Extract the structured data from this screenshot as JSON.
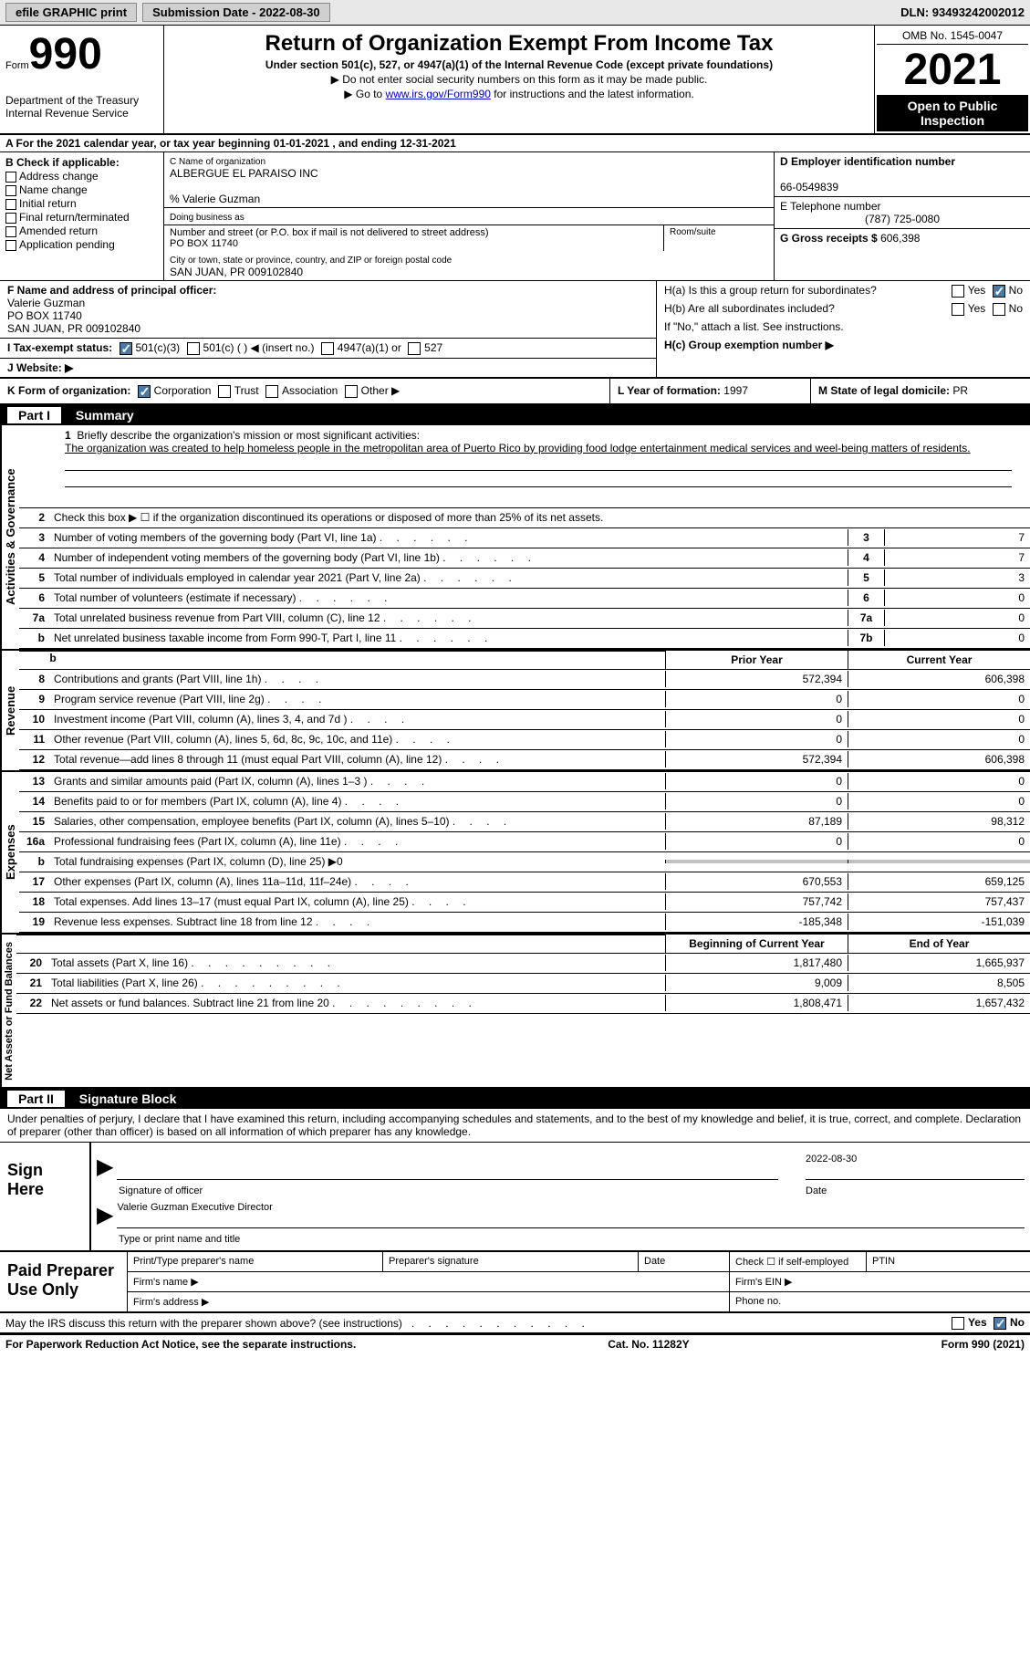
{
  "topbar": {
    "efile": "efile GRAPHIC print",
    "submission_label": "Submission Date - 2022-08-30",
    "dln_label": "DLN: 93493242002012"
  },
  "header": {
    "form_word": "Form",
    "form_num": "990",
    "dept": "Department of the Treasury",
    "irs": "Internal Revenue Service",
    "title": "Return of Organization Exempt From Income Tax",
    "sub": "Under section 501(c), 527, or 4947(a)(1) of the Internal Revenue Code (except private foundations)",
    "note1": "▶ Do not enter social security numbers on this form as it may be made public.",
    "note2_prefix": "▶ Go to ",
    "note2_link": "www.irs.gov/Form990",
    "note2_suffix": " for instructions and the latest information.",
    "omb": "OMB No. 1545-0047",
    "year": "2021",
    "open": "Open to Public Inspection"
  },
  "row_a": "A For the 2021 calendar year, or tax year beginning 01-01-2021   , and ending 12-31-2021",
  "col_b": {
    "label": "B Check if applicable:",
    "addr": "Address change",
    "name": "Name change",
    "initial": "Initial return",
    "final": "Final return/terminated",
    "amended": "Amended return",
    "app": "Application pending"
  },
  "col_c": {
    "name_lbl": "C Name of organization",
    "name": "ALBERGUE EL PARAISO INC",
    "care_of": "% Valerie Guzman",
    "dba_lbl": "Doing business as",
    "street_lbl": "Number and street (or P.O. box if mail is not delivered to street address)",
    "street": "PO BOX 11740",
    "room_lbl": "Room/suite",
    "city_lbl": "City or town, state or province, country, and ZIP or foreign postal code",
    "city": "SAN JUAN, PR  009102840"
  },
  "col_d": {
    "ein_lbl": "D Employer identification number",
    "ein": "66-0549839",
    "phone_lbl": "E Telephone number",
    "phone": "(787) 725-0080",
    "gross_lbl": "G Gross receipts $",
    "gross": "606,398"
  },
  "f_block": {
    "lbl": "F Name and address of principal officer:",
    "name": "Valerie Guzman",
    "street": "PO BOX 11740",
    "city": "SAN JUAN, PR  009102840"
  },
  "h_block": {
    "ha": "H(a)  Is this a group return for subordinates?",
    "yes": "Yes",
    "no": "No",
    "hb": "H(b)  Are all subordinates included?",
    "hb_note": "If \"No,\" attach a list. See instructions.",
    "hc": "H(c)  Group exemption number ▶"
  },
  "i_block": {
    "lbl": "I  Tax-exempt status:",
    "c3": "501(c)(3)",
    "c_insert": "501(c) (  ) ◀ (insert no.)",
    "a4947": "4947(a)(1) or",
    "s527": "527"
  },
  "j_block": "J  Website: ▶",
  "klm": {
    "k_lbl": "K Form of organization:",
    "corp": "Corporation",
    "trust": "Trust",
    "assoc": "Association",
    "other": "Other ▶",
    "l_lbl": "L Year of formation:",
    "l_val": "1997",
    "m_lbl": "M State of legal domicile:",
    "m_val": "PR"
  },
  "part1": {
    "label": "Part I",
    "title": "Summary"
  },
  "brief": {
    "num": "1",
    "lbl": "Briefly describe the organization's mission or most significant activities:",
    "text": "The organization was created to help homeless people in the metropolitan area of Puerto Rico by providing food lodge entertainment medical services and weel-being matters of residents."
  },
  "line2": {
    "num": "2",
    "text": "Check this box ▶ ☐  if the organization discontinued its operations or disposed of more than 25% of its net assets."
  },
  "gov_lines": [
    {
      "n": "3",
      "d": "Number of voting members of the governing body (Part VI, line 1a)",
      "box": "3",
      "v": "7"
    },
    {
      "n": "4",
      "d": "Number of independent voting members of the governing body (Part VI, line 1b)",
      "box": "4",
      "v": "7"
    },
    {
      "n": "5",
      "d": "Total number of individuals employed in calendar year 2021 (Part V, line 2a)",
      "box": "5",
      "v": "3"
    },
    {
      "n": "6",
      "d": "Total number of volunteers (estimate if necessary)",
      "box": "6",
      "v": "0"
    },
    {
      "n": "7a",
      "d": "Total unrelated business revenue from Part VIII, column (C), line 12",
      "box": "7a",
      "v": "0"
    },
    {
      "n": "b",
      "d": "Net unrelated business taxable income from Form 990-T, Part I, line 11",
      "box": "7b",
      "v": "0"
    }
  ],
  "col_headers": {
    "prior": "Prior Year",
    "current": "Current Year"
  },
  "revenue_lines": [
    {
      "n": "8",
      "d": "Contributions and grants (Part VIII, line 1h)",
      "p": "572,394",
      "c": "606,398"
    },
    {
      "n": "9",
      "d": "Program service revenue (Part VIII, line 2g)",
      "p": "0",
      "c": "0"
    },
    {
      "n": "10",
      "d": "Investment income (Part VIII, column (A), lines 3, 4, and 7d )",
      "p": "0",
      "c": "0"
    },
    {
      "n": "11",
      "d": "Other revenue (Part VIII, column (A), lines 5, 6d, 8c, 9c, 10c, and 11e)",
      "p": "0",
      "c": "0"
    },
    {
      "n": "12",
      "d": "Total revenue—add lines 8 through 11 (must equal Part VIII, column (A), line 12)",
      "p": "572,394",
      "c": "606,398"
    }
  ],
  "expense_lines": [
    {
      "n": "13",
      "d": "Grants and similar amounts paid (Part IX, column (A), lines 1–3 )",
      "p": "0",
      "c": "0"
    },
    {
      "n": "14",
      "d": "Benefits paid to or for members (Part IX, column (A), line 4)",
      "p": "0",
      "c": "0"
    },
    {
      "n": "15",
      "d": "Salaries, other compensation, employee benefits (Part IX, column (A), lines 5–10)",
      "p": "87,189",
      "c": "98,312"
    },
    {
      "n": "16a",
      "d": "Professional fundraising fees (Part IX, column (A), line 11e)",
      "p": "0",
      "c": "0"
    },
    {
      "n": "b",
      "d": "Total fundraising expenses (Part IX, column (D), line 25) ▶0",
      "p": "",
      "c": "",
      "shaded": true
    },
    {
      "n": "17",
      "d": "Other expenses (Part IX, column (A), lines 11a–11d, 11f–24e)",
      "p": "670,553",
      "c": "659,125"
    },
    {
      "n": "18",
      "d": "Total expenses. Add lines 13–17 (must equal Part IX, column (A), line 25)",
      "p": "757,742",
      "c": "757,437"
    },
    {
      "n": "19",
      "d": "Revenue less expenses. Subtract line 18 from line 12",
      "p": "-185,348",
      "c": "-151,039"
    }
  ],
  "na_headers": {
    "begin": "Beginning of Current Year",
    "end": "End of Year"
  },
  "na_lines": [
    {
      "n": "20",
      "d": "Total assets (Part X, line 16)",
      "p": "1,817,480",
      "c": "1,665,937"
    },
    {
      "n": "21",
      "d": "Total liabilities (Part X, line 26)",
      "p": "9,009",
      "c": "8,505"
    },
    {
      "n": "22",
      "d": "Net assets or fund balances. Subtract line 21 from line 20",
      "p": "1,808,471",
      "c": "1,657,432"
    }
  ],
  "vtabs": {
    "gov": "Activities & Governance",
    "rev": "Revenue",
    "exp": "Expenses",
    "na": "Net Assets or Fund Balances"
  },
  "part2": {
    "label": "Part II",
    "title": "Signature Block"
  },
  "perjury": "Under penalties of perjury, I declare that I have examined this return, including accompanying schedules and statements, and to the best of my knowledge and belief, it is true, correct, and complete. Declaration of preparer (other than officer) is based on all information of which preparer has any knowledge.",
  "sign": {
    "lbl": "Sign Here",
    "sig_officer": "Signature of officer",
    "date": "Date",
    "date_val": "2022-08-30",
    "name_title": "Valerie Guzman  Executive Director",
    "type_name": "Type or print name and title"
  },
  "paid": {
    "lbl": "Paid Preparer Use Only",
    "print_name": "Print/Type preparer's name",
    "sig": "Preparer's signature",
    "date": "Date",
    "check_self": "Check ☐ if self-employed",
    "ptin": "PTIN",
    "firm_name": "Firm's name  ▶",
    "firm_ein": "Firm's EIN ▶",
    "firm_addr": "Firm's address ▶",
    "phone": "Phone no."
  },
  "discuss": {
    "text": "May the IRS discuss this return with the preparer shown above? (see instructions)",
    "yes": "Yes",
    "no": "No"
  },
  "footer": {
    "pra": "For Paperwork Reduction Act Notice, see the separate instructions.",
    "cat": "Cat. No. 11282Y",
    "form": "Form 990 (2021)"
  }
}
